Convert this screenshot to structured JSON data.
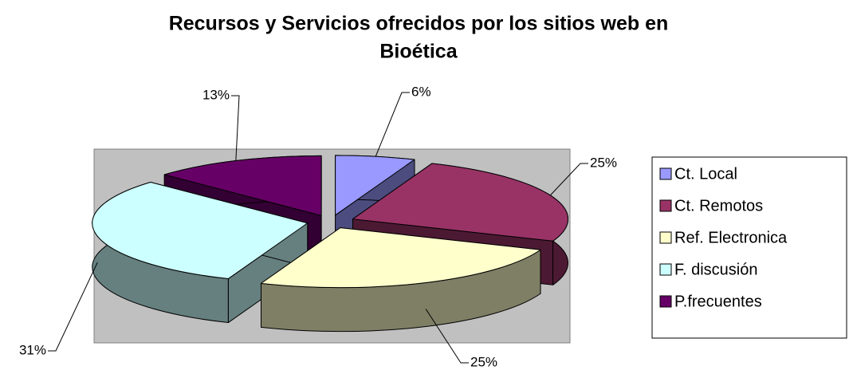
{
  "chart_data": {
    "type": "pie",
    "title": [
      "Recursos y Servicios ofrecidos por los sitios web en",
      "Bioética"
    ],
    "categories": [
      "Ct. Local",
      "Ct. Remotos",
      "Ref. Electronica",
      "F. discusión",
      "P.frecuentes"
    ],
    "values": [
      6,
      25,
      25,
      31,
      13
    ],
    "value_labels": [
      "6%",
      "25%",
      "25%",
      "31%",
      "13%"
    ],
    "colors": [
      "#9999ff",
      "#993366",
      "#ffffcc",
      "#ccffff",
      "#660066"
    ],
    "legend": "right"
  }
}
